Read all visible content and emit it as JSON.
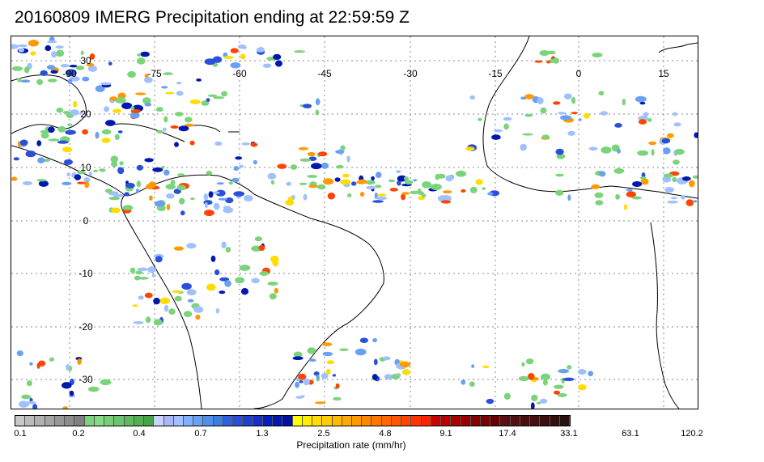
{
  "title": "20160809 IMERG Precipitation ending at 22:59:59 Z",
  "map": {
    "longitude_labels": [
      "-90",
      "-75",
      "-60",
      "-45",
      "-30",
      "-15",
      "0",
      "15"
    ],
    "latitude_labels": [
      "30",
      "20",
      "10",
      "0",
      "-10",
      "-20",
      "-30"
    ]
  },
  "colorbar": {
    "title": "Precipitation rate (mm/hr)",
    "tick_labels": [
      "0.1",
      "0.2",
      "0.4",
      "0.7",
      "1.3",
      "2.5",
      "4.8",
      "9.1",
      "17.4",
      "33.1",
      "63.1",
      "120.2"
    ],
    "colors": [
      "#c8c8c8",
      "#bcbcbc",
      "#b0b0b0",
      "#a4a4a4",
      "#989898",
      "#8c8c8c",
      "#808080",
      "#7ad47a",
      "#86da86",
      "#78cf78",
      "#6cc46c",
      "#60b960",
      "#54ae54",
      "#48a348",
      "#c8d4ff",
      "#aab8f4",
      "#a0c0ff",
      "#80b0ff",
      "#6aa0f4",
      "#5090ea",
      "#3d7ee0",
      "#3060e0",
      "#2850d8",
      "#2040d0",
      "#1830c8",
      "#0020c0",
      "#0018b0",
      "#0010a0",
      "#ffff00",
      "#ffee00",
      "#ffdd00",
      "#ffcc00",
      "#ffbb00",
      "#ffaa00",
      "#ff9900",
      "#ff8800",
      "#ff7700",
      "#ff6600",
      "#ff5500",
      "#ff4400",
      "#ff3300",
      "#ff2200",
      "#cc0000",
      "#bb0000",
      "#aa0000",
      "#990000",
      "#880000",
      "#770000",
      "#660000",
      "#5a1010",
      "#521010",
      "#4a1010",
      "#421010",
      "#3a1010",
      "#321010",
      "#2a1010"
    ]
  }
}
